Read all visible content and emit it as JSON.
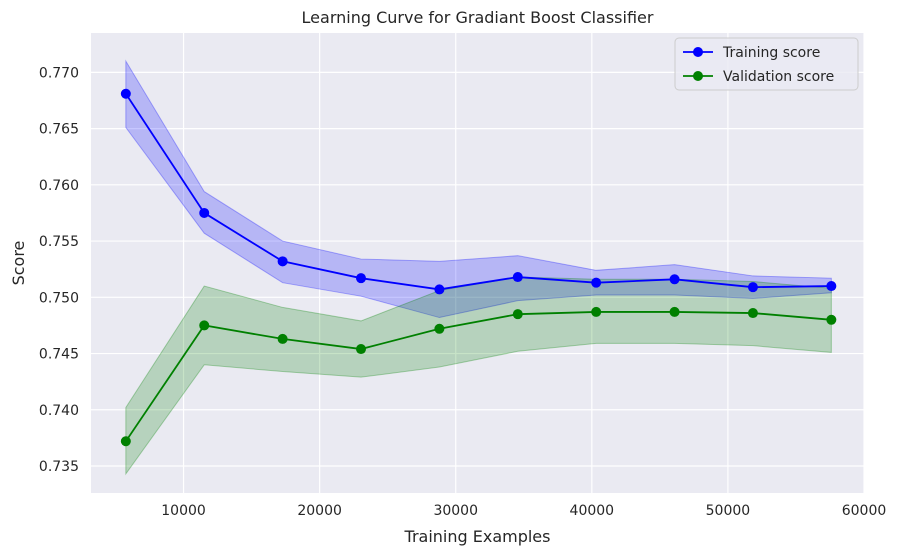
{
  "chart_data": {
    "type": "line",
    "title": "Learning Curve for Gradiant Boost Classifier",
    "xlabel": "Training Examples",
    "ylabel": "Score",
    "xlim": [
      3200,
      60000
    ],
    "ylim": [
      0.7326,
      0.7735
    ],
    "xticks": [
      10000,
      20000,
      30000,
      40000,
      50000,
      60000
    ],
    "xtick_labels": [
      "10000",
      "20000",
      "30000",
      "40000",
      "50000",
      "60000"
    ],
    "yticks": [
      0.735,
      0.74,
      0.745,
      0.75,
      0.755,
      0.76,
      0.765,
      0.77
    ],
    "ytick_labels": [
      "0.735",
      "0.740",
      "0.745",
      "0.750",
      "0.755",
      "0.760",
      "0.765",
      "0.770"
    ],
    "grid": true,
    "legend_position": "top-right",
    "x": [
      5760,
      11520,
      17280,
      23040,
      28800,
      34560,
      40320,
      46080,
      51840,
      57600
    ],
    "series": [
      {
        "name": "Training score",
        "color": "#0000ff",
        "values": [
          0.7681,
          0.7575,
          0.7532,
          0.7517,
          0.7507,
          0.7518,
          0.7513,
          0.7516,
          0.7509,
          0.751
        ],
        "band_lower": [
          0.7651,
          0.7557,
          0.7513,
          0.7501,
          0.7482,
          0.7497,
          0.7502,
          0.7502,
          0.7499,
          0.7504
        ],
        "band_upper": [
          0.771,
          0.7594,
          0.755,
          0.7534,
          0.7532,
          0.7537,
          0.7524,
          0.7529,
          0.7519,
          0.7517
        ],
        "band_color": "#0000ff"
      },
      {
        "name": "Validation score",
        "color": "#008000",
        "values": [
          0.7372,
          0.7475,
          0.7463,
          0.7454,
          0.7472,
          0.7485,
          0.7487,
          0.7487,
          0.7486,
          0.748
        ],
        "band_lower": [
          0.7343,
          0.744,
          0.7434,
          0.7429,
          0.7438,
          0.7452,
          0.7459,
          0.7459,
          0.7457,
          0.7451
        ],
        "band_upper": [
          0.7402,
          0.751,
          0.7491,
          0.7479,
          0.7506,
          0.7518,
          0.7516,
          0.7516,
          0.7514,
          0.7508
        ],
        "band_color": "#008000"
      }
    ]
  }
}
